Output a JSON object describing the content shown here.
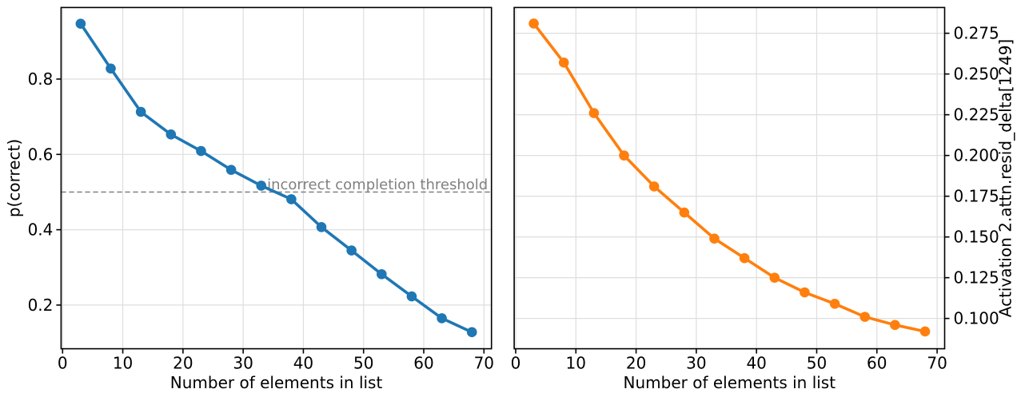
{
  "figure": {
    "background": "#ffffff",
    "spine_color": "#000000",
    "grid_color": "#dedede",
    "tick_color": "#000000",
    "text_color": "#000000"
  },
  "chart_data": [
    {
      "type": "line",
      "name": "p-correct-vs-list-length",
      "title": "",
      "xlabel": "Number of elements in list",
      "ylabel": "p(correct)",
      "yaxis_side": "left",
      "color": "#1f77b4",
      "marker": "circle",
      "grid": true,
      "legend": "none",
      "x": [
        3,
        8,
        13,
        18,
        23,
        28,
        33,
        38,
        43,
        48,
        53,
        58,
        63,
        68
      ],
      "values": [
        0.947,
        0.828,
        0.713,
        0.653,
        0.609,
        0.559,
        0.517,
        0.481,
        0.407,
        0.345,
        0.282,
        0.223,
        0.165,
        0.128
      ],
      "xlim": [
        -0.25,
        71.25
      ],
      "ylim": [
        0.084,
        0.99
      ],
      "xticks": [
        0,
        10,
        20,
        30,
        40,
        50,
        60,
        70
      ],
      "xtick_labels": [
        "0",
        "10",
        "20",
        "30",
        "40",
        "50",
        "60",
        "70"
      ],
      "yticks": [
        0.2,
        0.4,
        0.6,
        0.8
      ],
      "ytick_labels": [
        "0.2",
        "0.4",
        "0.6",
        "0.8"
      ],
      "threshold": {
        "value": 0.5,
        "label": "incorrect completion threshold",
        "line_color": "#888888",
        "text_color": "#808080",
        "line_style": "dashed"
      }
    },
    {
      "type": "line",
      "name": "activation-vs-list-length",
      "title": "",
      "xlabel": "Number of elements in list",
      "ylabel": "Activation 2.attn.resid_delta[1249]",
      "yaxis_side": "right",
      "color": "#ff7f0e",
      "marker": "circle",
      "grid": true,
      "legend": "none",
      "x": [
        3,
        8,
        13,
        18,
        23,
        28,
        33,
        38,
        43,
        48,
        53,
        58,
        63,
        68
      ],
      "values": [
        0.281,
        0.257,
        0.226,
        0.2,
        0.181,
        0.165,
        0.149,
        0.137,
        0.125,
        0.116,
        0.109,
        0.101,
        0.096,
        0.092
      ],
      "xlim": [
        -0.25,
        71.25
      ],
      "ylim": [
        0.0814,
        0.2908
      ],
      "xticks": [
        0,
        10,
        20,
        30,
        40,
        50,
        60,
        70
      ],
      "xtick_labels": [
        "0",
        "10",
        "20",
        "30",
        "40",
        "50",
        "60",
        "70"
      ],
      "yticks": [
        0.1,
        0.125,
        0.15,
        0.175,
        0.2,
        0.225,
        0.25,
        0.275
      ],
      "ytick_labels": [
        "0.100",
        "0.125",
        "0.150",
        "0.175",
        "0.200",
        "0.225",
        "0.250",
        "0.275"
      ]
    }
  ]
}
